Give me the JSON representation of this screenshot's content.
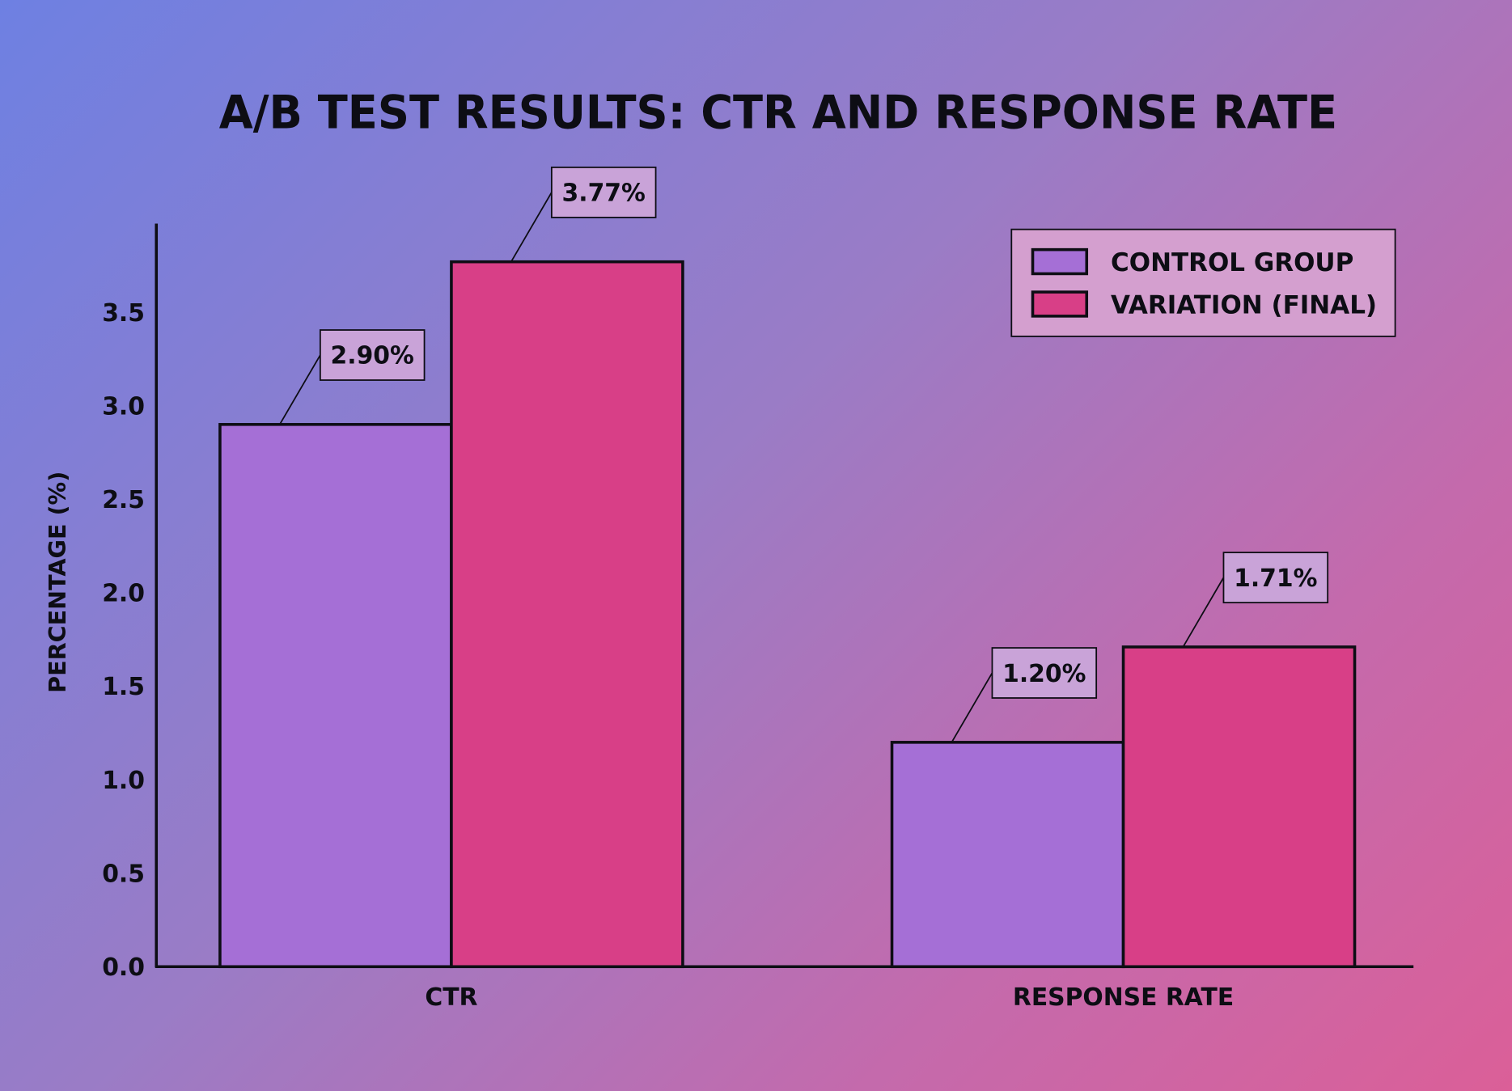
{
  "chart_data": {
    "type": "bar",
    "title": "A/B TEST RESULTS: CTR AND RESPONSE RATE",
    "xlabel": "",
    "ylabel": "PERCENTAGE (%)",
    "categories": [
      "CTR",
      "RESPONSE RATE"
    ],
    "series": [
      {
        "name": "CONTROL GROUP",
        "values": [
          2.9,
          1.2
        ],
        "labels": [
          "2.90%",
          "1.20%"
        ],
        "color": "#a56fd6"
      },
      {
        "name": "VARIATION (FINAL)",
        "values": [
          3.77,
          1.71
        ],
        "labels": [
          "3.77%",
          "1.71%"
        ],
        "color": "#d83f87"
      }
    ],
    "yticks": [
      "0.0",
      "0.5",
      "1.0",
      "1.5",
      "2.0",
      "2.5",
      "3.0",
      "3.5"
    ],
    "ylim": [
      0,
      3.97
    ],
    "grid": false,
    "legend_position": "top-right",
    "label_box_color": "#c9a3d8",
    "legend_box_color": "#d49fcf"
  }
}
